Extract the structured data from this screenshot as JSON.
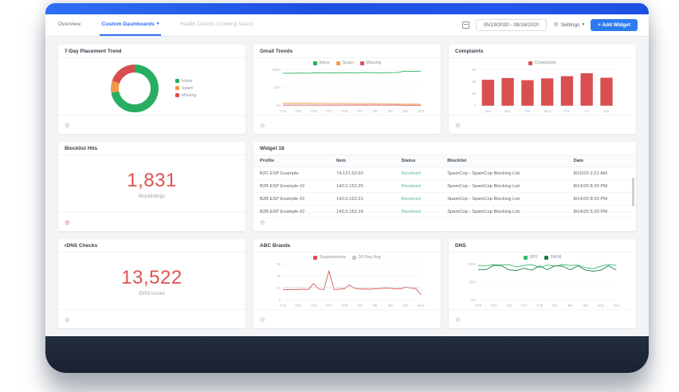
{
  "icons": {
    "gear": "⚙",
    "caret": "▾",
    "plus": "+"
  },
  "colors": {
    "accent_blue": "#2f6df2",
    "inbox_green": "#27ae60",
    "spam_orange": "#f2994a",
    "missing_red": "#d94f4f",
    "big_number_red": "#e05151",
    "resolved_green": "#54b98a",
    "footer_navy": "#1f2838"
  },
  "navbar": {
    "tabs": [
      {
        "label": "Overview"
      },
      {
        "label": "Custom Dashboards"
      },
      {
        "label": "Health Checks (Coming Soon)"
      }
    ],
    "date_range": "05/19/2020 - 08/16/2020",
    "settings_label": "Settings",
    "add_widget_label": "+ Add Widget"
  },
  "cards": {
    "placement": {
      "title": "7-Day Placement Trend"
    },
    "gmail": {
      "title": "Gmail Trends"
    },
    "complaints": {
      "title": "Complaints"
    },
    "blocklist": {
      "title": "Blocklist Hits",
      "value": "1,831",
      "subtitle": "Blocklistings"
    },
    "widget18": {
      "title": "Widget 18"
    },
    "rdns": {
      "title": "rDNS Checks",
      "value": "13,522",
      "subtitle": "rDNS Issues"
    },
    "abc": {
      "title": "ABC Brands"
    },
    "dns": {
      "title": "DNS"
    }
  },
  "widget18": {
    "title": "Widget 18",
    "columns": [
      "Profile",
      "Item",
      "Status",
      "Blocklist",
      "Date"
    ],
    "rows": [
      [
        "B2C ESP Example",
        "74.121.52.60",
        "Resolved",
        "SpamCop - SpamCop Blocking List",
        "8/10/20 2:21 AM"
      ],
      [
        "B2B ESP Example #2",
        "142.0.162.25",
        "Resolved",
        "SpamCop - SpamCop Blocking List",
        "8/14/20 8:20 PM"
      ],
      [
        "B2B ESP Example #2",
        "142.0.162.21",
        "Resolved",
        "SpamCop - SpamCop Blocking List",
        "8/14/20 8:20 PM"
      ],
      [
        "B2B ESP Example #2",
        "142.0.162.16",
        "Resolved",
        "SpamCop - SpamCop Blocking List",
        "8/14/20 5:20 PM"
      ]
    ]
  },
  "chart_data": [
    {
      "id": "placement_donut",
      "type": "pie",
      "title": "7-Day Placement Trend",
      "donut": true,
      "legend_pos": "right",
      "segments": [
        {
          "label": "Inbox",
          "value": 72,
          "color": "#27ae60"
        },
        {
          "label": "Spam",
          "value": 8,
          "color": "#f2994a"
        },
        {
          "label": "Missing",
          "value": 20,
          "color": "#d94f4f"
        }
      ]
    },
    {
      "id": "gmail_trends",
      "type": "line",
      "title": "Gmail Trends",
      "ylim": [
        0,
        100
      ],
      "yticks": [
        "100%",
        "50%",
        "0%"
      ],
      "x": [
        "7/18",
        "7/21",
        "7/24",
        "7/27",
        "7/30",
        "8/2",
        "8/5",
        "8/8",
        "8/11",
        "8/14"
      ],
      "series": [
        {
          "name": "Inbox",
          "color": "#27ae60",
          "values": [
            90,
            90,
            90.5,
            90,
            91,
            90.5,
            91,
            91,
            91.5,
            91,
            92,
            91.5,
            91,
            91.5,
            92,
            95.5,
            95,
            96
          ]
        },
        {
          "name": "Spam",
          "color": "#f2994a",
          "values": [
            7,
            7,
            6.5,
            7,
            6.5,
            6.5,
            6,
            6.5,
            6,
            6,
            5.5,
            6,
            5.5,
            5.5,
            5,
            4,
            4.5,
            4
          ]
        },
        {
          "name": "Missing",
          "color": "#d94f4f",
          "values": [
            1.5,
            1.5,
            1.5,
            1.5,
            1.5,
            1.5,
            1.5,
            1.5,
            1.5,
            1.5,
            1.5,
            1.5,
            1.5,
            1.5,
            1.5,
            1,
            1,
            1
          ]
        }
      ]
    },
    {
      "id": "complaints",
      "type": "bar",
      "title": "Complaints",
      "ylim": [
        0,
        6000
      ],
      "yticks": [
        "6K",
        "4K",
        "2K",
        "0"
      ],
      "categories": [
        "Sun",
        "Mon",
        "Tue",
        "Wed",
        "Thu",
        "Fri",
        "Sat"
      ],
      "values": [
        4300,
        4600,
        4250,
        4550,
        4900,
        5400,
        4650
      ],
      "color": "#d94f4f",
      "legend": [
        {
          "label": "Complaints",
          "color": "#d94f4f"
        }
      ]
    },
    {
      "id": "abc_brands",
      "type": "line",
      "title": "ABC Brands",
      "ylim": [
        0,
        3000
      ],
      "yticks": [
        "3K",
        "2K",
        "1K",
        "0"
      ],
      "x": [
        "7/18",
        "7/21",
        "7/24",
        "7/27",
        "7/30",
        "8/2",
        "8/5",
        "8/8",
        "8/11",
        "8/14"
      ],
      "series": [
        {
          "name": "Suppressions",
          "color": "#d94f4f",
          "values": [
            880,
            870,
            880,
            885,
            900,
            890,
            1380,
            930,
            870,
            2420,
            890,
            900,
            950,
            1250,
            980,
            920,
            930,
            900,
            940,
            960,
            1000,
            980,
            930,
            940,
            1080,
            1000,
            950,
            430
          ]
        },
        {
          "name": "30 Day Avg",
          "color": "#c3c9cf",
          "dash": true,
          "values": [
            1050,
            1050
          ]
        }
      ]
    },
    {
      "id": "dns",
      "type": "line",
      "title": "DNS",
      "ylim": [
        0,
        100
      ],
      "yticks": [
        "100%",
        "50%",
        "0%"
      ],
      "x": [
        "7/18",
        "7/21",
        "7/24",
        "7/27",
        "7/30",
        "8/2",
        "8/5",
        "8/8",
        "8/11",
        "8/14"
      ],
      "series": [
        {
          "name": "SPF",
          "color": "#2dbd6e",
          "values": [
            96,
            95,
            98,
            97,
            98,
            92,
            96,
            98,
            90,
            97,
            94,
            98,
            96,
            97,
            90,
            87,
            94,
            98,
            96
          ]
        },
        {
          "name": "DKIM",
          "color": "#1e7e4c",
          "values": [
            84,
            84,
            96,
            96,
            84,
            82,
            88,
            83,
            95,
            84,
            95,
            94,
            84,
            95,
            83,
            80,
            83,
            95,
            83
          ]
        }
      ]
    }
  ]
}
